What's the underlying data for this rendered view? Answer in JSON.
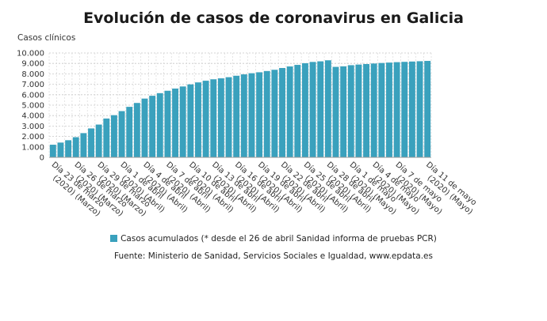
{
  "chart_data": {
    "type": "bar",
    "title": "Evolución de casos de coronavirus en Galicia",
    "ylabel": "Casos clínicos",
    "ylim": [
      0,
      10000
    ],
    "yticks": [
      "0",
      "1.000",
      "2.000",
      "3.000",
      "4.000",
      "5.000",
      "6.000",
      "7.000",
      "8.000",
      "9.000",
      "10.000"
    ],
    "grid": true,
    "bar_color": "#3aa1bd",
    "categories": [
      "Día 23 de marzo (2020) (Marzo)",
      "Día 24 de marzo (2020) (Marzo)",
      "Día 25 de marzo (2020) (Marzo)",
      "Día 26 de marzo (2020) (Marzo)",
      "Día 27 de marzo (2020) (Marzo)",
      "Día 28 de marzo (2020) (Marzo)",
      "Día 29 de marzo (2020) (Marzo)",
      "Día 30 de marzo (2020) (Marzo)",
      "Día 31 de marzo (2020) (Marzo)",
      "Día 1 de abril (2020) (Abril)",
      "Día 2 de abril (2020) (Abril)",
      "Día 3 de abril (2020) (Abril)",
      "Día 4 de abril (2020) (Abril)",
      "Día 5 de abril (2020) (Abril)",
      "Día 6 de abril (2020) (Abril)",
      "Día 7 de abril (2020) (Abril)",
      "Día 8 de abril (2020) (Abril)",
      "Día 9 de abril (2020) (Abril)",
      "Día 10 de abril (2020) (Abril)",
      "Día 11 de abril (2020) (Abril)",
      "Día 12 de abril (2020) (Abril)",
      "Día 13 de abril (2020) (Abril)",
      "Día 14 de abril (2020) (Abril)",
      "Día 15 de abril (2020) (Abril)",
      "Día 16 de abril (2020) (Abril)",
      "Día 17 de abril (2020) (Abril)",
      "Día 18 de abril (2020) (Abril)",
      "Día 19 de abril (2020) (Abril)",
      "Día 20 de abril (2020) (Abril)",
      "Día 21 de abril (2020) (Abril)",
      "Día 22 de abril (2020) (Abril)",
      "Día 23 de abril (2020) (Abril)",
      "Día 24 de abril (2020) (Abril)",
      "Día 25 de abril (2020) (Abril)",
      "Día 26 de abril (2020) (Abril)",
      "Día 27 de abril (2020) (Abril)",
      "Día 28 de abril (2020) (Abril)",
      "Día 29 de abril (2020) (Abril)",
      "Día 30 de abril (2020) (Abril)",
      "Día 1 de mayo (2020) (Mayo)",
      "Día 2 de mayo (2020) (Mayo)",
      "Día 3 de mayo (2020) (Mayo)",
      "Día 4 de mayo (2020) (Mayo)",
      "Día 5 de mayo (2020) (Mayo)",
      "Día 6 de mayo (2020) (Mayo)",
      "Día 7 de mayo (2020) (Mayo)",
      "Día 8 de mayo (2020) (Mayo)",
      "Día 9 de mayo (2020) (Mayo)",
      "Día 10 de mayo (2020) (Mayo)",
      "Día 11 de mayo (2020) (Mayo)"
    ],
    "x_tick_labels": [
      "Día 23 de marzo (2020) (Marzo)",
      "Día 26 de marzo (2020) (Marzo)",
      "Día 29 de marzo (2020) (Marzo)",
      "Día 1 de abril (2020) (Abril)",
      "Día 4 de abril (2020) (Abril)",
      "Día 7 de abril (2020) (Abril)",
      "Día 10 de abril (2020) (Abril)",
      "Día 13 de abril (2020) (Abril)",
      "Día 16 de abril (2020) (Abril)",
      "Día 19 de abril (2020) (Abril)",
      "Día 22 de abril (2020) (Abril)",
      "Día 25 de abril (2020) (Abril)",
      "Día 28 de abril (2020) (Abril)",
      "Día 1 de mayo (2020) (Mayo)",
      "Día 4 de mayo (2020) (Mayo)",
      "Día 7 de mayo (2020) (Mayo)",
      "Día 11 de mayo (2020) (Mayo)"
    ],
    "series": [
      {
        "name": "Casos acumulados (* desde el 26 de abril Sanidad informa de pruebas PCR)",
        "values": [
          1210,
          1415,
          1640,
          1930,
          2320,
          2770,
          3140,
          3720,
          4040,
          4430,
          4840,
          5210,
          5630,
          5900,
          6150,
          6380,
          6590,
          6790,
          6990,
          7180,
          7340,
          7480,
          7570,
          7680,
          7820,
          7950,
          8060,
          8150,
          8270,
          8390,
          8560,
          8710,
          8860,
          9020,
          9140,
          9200,
          9300,
          8670,
          8720,
          8830,
          8890,
          8940,
          8990,
          9040,
          9080,
          9120,
          9150,
          9180,
          9210,
          9240
        ]
      }
    ]
  },
  "legend": {
    "label": "Casos acumulados (* desde el 26 de abril Sanidad informa de pruebas PCR)"
  },
  "source": "Fuente: Ministerio de Sanidad, Servicios Sociales e Igualdad, www.epdata.es"
}
